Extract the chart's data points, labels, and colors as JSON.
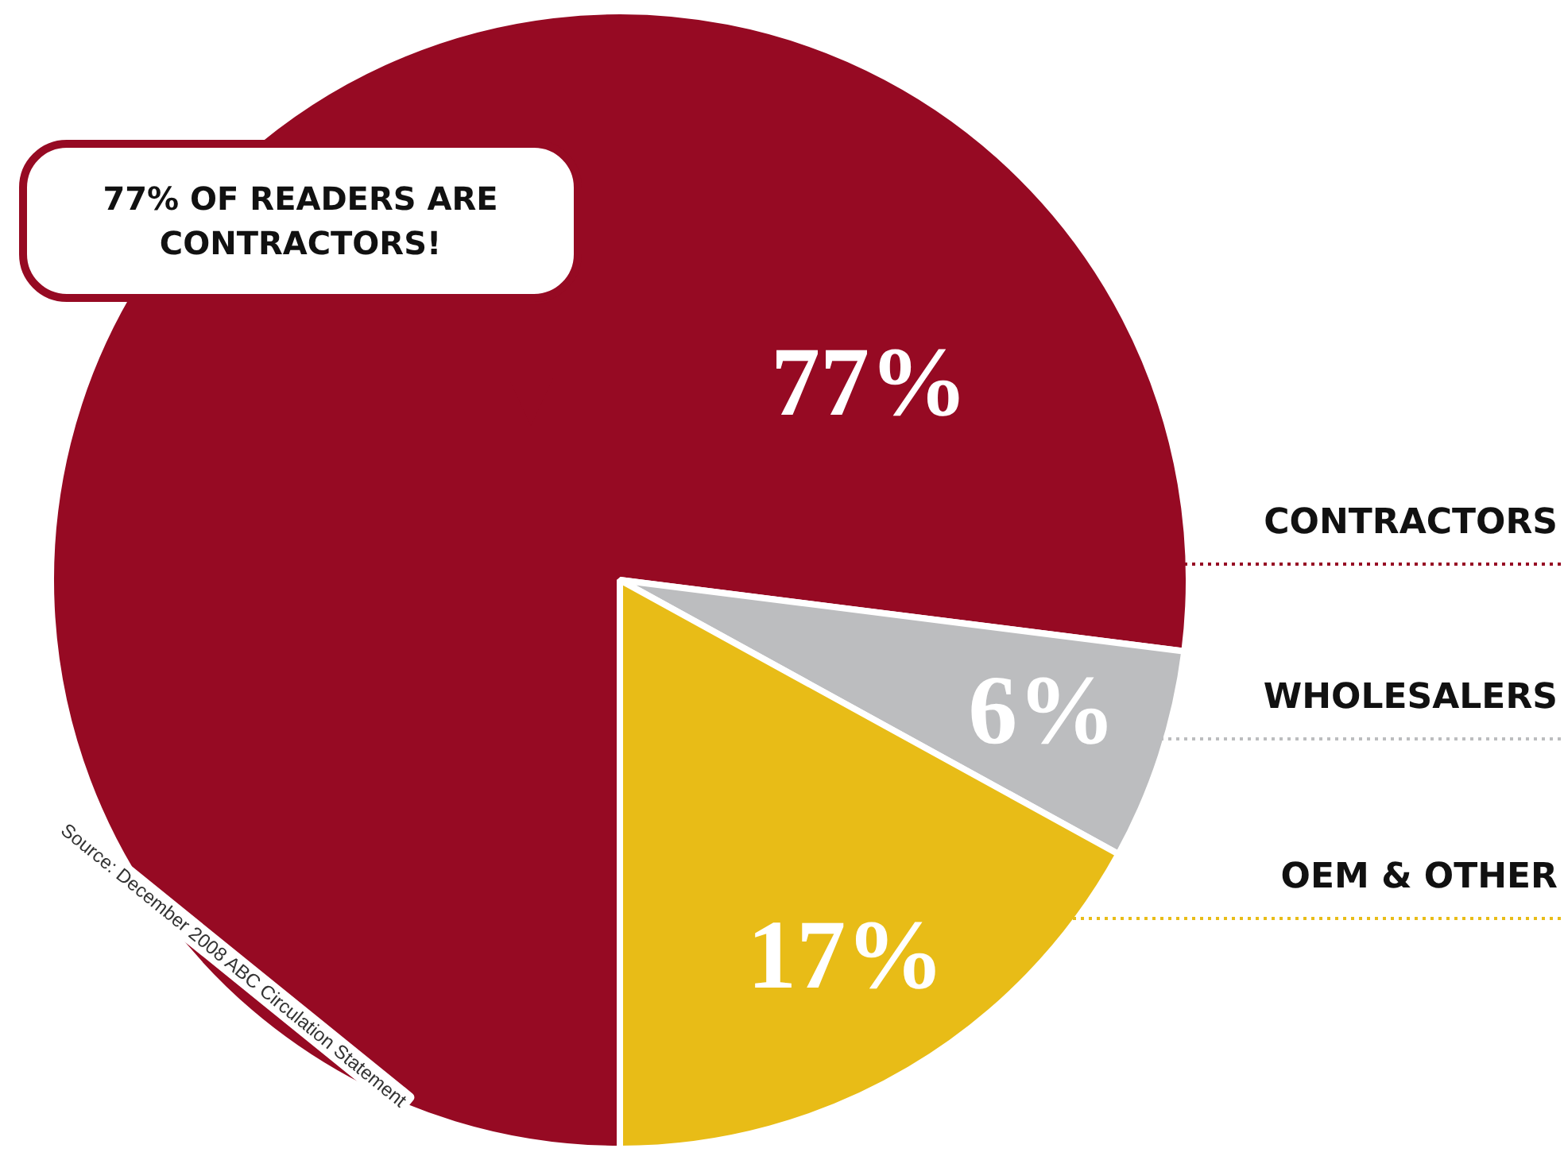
{
  "chart_data": {
    "type": "pie",
    "categories": [
      "CONTRACTORS",
      "WHOLESALERS",
      "OEM & OTHER"
    ],
    "values": [
      77,
      6,
      17
    ],
    "colors": [
      "#960a23",
      "#bcbdbf",
      "#e8bc17"
    ],
    "value_labels": [
      "77%",
      "6%",
      "17%"
    ],
    "annotations": [
      "77% OF READERS ARE CONTRACTORS!",
      "Source: December 2008 ABC Circulation Statement"
    ]
  }
}
